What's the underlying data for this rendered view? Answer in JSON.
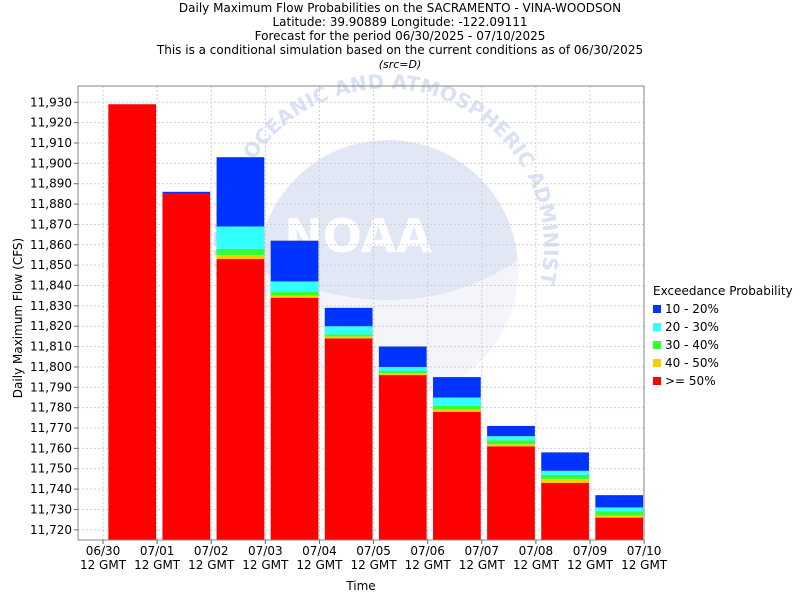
{
  "titles": {
    "line1": "Daily Maximum Flow Probabilities on the SACRAMENTO - VINA-WOODSON",
    "line2": "Latitude: 39.90889 Longitude: -122.09111",
    "line3": "Forecast for the period 06/30/2025 - 07/10/2025",
    "line4": "This is a conditional simulation based on the current conditions as of 06/30/2025",
    "line5": "(src=D)"
  },
  "watermark": {
    "text": "NOAA",
    "arc_text": "NATIONAL OCEANIC AND ATMOSPHERIC ADMINISTRATION"
  },
  "legend": {
    "title": "Exceedance Probability",
    "items": [
      {
        "label": "10 - 20%",
        "color": "#0033ff"
      },
      {
        "label": "20 - 30%",
        "color": "#33ffff"
      },
      {
        "label": "30 - 40%",
        "color": "#33ff33"
      },
      {
        "label": "40 - 50%",
        "color": "#ffcc00"
      },
      {
        "label": ">= 50%",
        "color": "#ff0000"
      }
    ]
  },
  "chart_data": {
    "type": "bar",
    "stacked": true,
    "xlabel": "Time",
    "ylabel": "Daily Maximum Flow (CFS)",
    "ylim": [
      11715,
      11938
    ],
    "yticks": [
      11720,
      11730,
      11740,
      11750,
      11760,
      11770,
      11780,
      11790,
      11800,
      11810,
      11820,
      11830,
      11840,
      11850,
      11860,
      11870,
      11880,
      11890,
      11900,
      11910,
      11920,
      11930
    ],
    "xticks": [
      {
        "date": "06/30",
        "sub": "12 GMT"
      },
      {
        "date": "07/01",
        "sub": "12 GMT"
      },
      {
        "date": "07/02",
        "sub": "12 GMT"
      },
      {
        "date": "07/03",
        "sub": "12 GMT"
      },
      {
        "date": "07/04",
        "sub": "12 GMT"
      },
      {
        "date": "07/05",
        "sub": "12 GMT"
      },
      {
        "date": "07/06",
        "sub": "12 GMT"
      },
      {
        "date": "07/07",
        "sub": "12 GMT"
      },
      {
        "date": "07/08",
        "sub": "12 GMT"
      },
      {
        "date": "07/09",
        "sub": "12 GMT"
      },
      {
        "date": "07/10",
        "sub": "12 GMT"
      }
    ],
    "grid": true,
    "legend_position": "right",
    "bars": [
      {
        "period": "06/30-07/01",
        "p50": 11929,
        "p40": 11929,
        "p30": 11929,
        "p20": 11929,
        "p10": 11929
      },
      {
        "period": "07/01-07/02",
        "p50": 11885,
        "p40": 11885,
        "p30": 11885,
        "p20": 11885,
        "p10": 11886
      },
      {
        "period": "07/02-07/03",
        "p50": 11853,
        "p40": 11855,
        "p30": 11858,
        "p20": 11869,
        "p10": 11903
      },
      {
        "period": "07/03-07/04",
        "p50": 11834,
        "p40": 11835,
        "p30": 11837,
        "p20": 11842,
        "p10": 11862
      },
      {
        "period": "07/04-07/05",
        "p50": 11814,
        "p40": 11815,
        "p30": 11816,
        "p20": 11820,
        "p10": 11829
      },
      {
        "period": "07/05-07/06",
        "p50": 11796,
        "p40": 11797,
        "p30": 11798,
        "p20": 11800,
        "p10": 11810
      },
      {
        "period": "07/06-07/07",
        "p50": 11778,
        "p40": 11779,
        "p30": 11781,
        "p20": 11785,
        "p10": 11795
      },
      {
        "period": "07/07-07/08",
        "p50": 11761,
        "p40": 11762,
        "p30": 11764,
        "p20": 11766,
        "p10": 11771
      },
      {
        "period": "07/08-07/09",
        "p50": 11743,
        "p40": 11745,
        "p30": 11747,
        "p20": 11749,
        "p10": 11758
      },
      {
        "period": "07/09-07/10",
        "p50": 11726,
        "p40": 11727,
        "p30": 11729,
        "p20": 11731,
        "p10": 11737
      }
    ]
  }
}
